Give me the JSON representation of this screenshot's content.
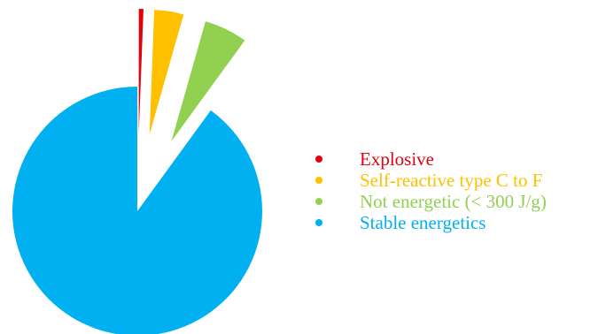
{
  "chart_data": {
    "type": "pie",
    "title": "",
    "start_angle_deg": 0,
    "direction": "clockwise",
    "legend_position": "right",
    "slices": [
      {
        "name": "Explosive",
        "value": 0.6,
        "color": "#e3000f",
        "exploded": true
      },
      {
        "name": "Self-reactive type C to F",
        "value": 3.8,
        "color": "#ffc000",
        "exploded": true
      },
      {
        "name": "Not energetic (< 300 J/g)",
        "value": 5.6,
        "color": "#92d050",
        "exploded": true
      },
      {
        "name": "Stable energetics",
        "value": 90.0,
        "color": "#00b0f0",
        "exploded": false
      }
    ]
  }
}
